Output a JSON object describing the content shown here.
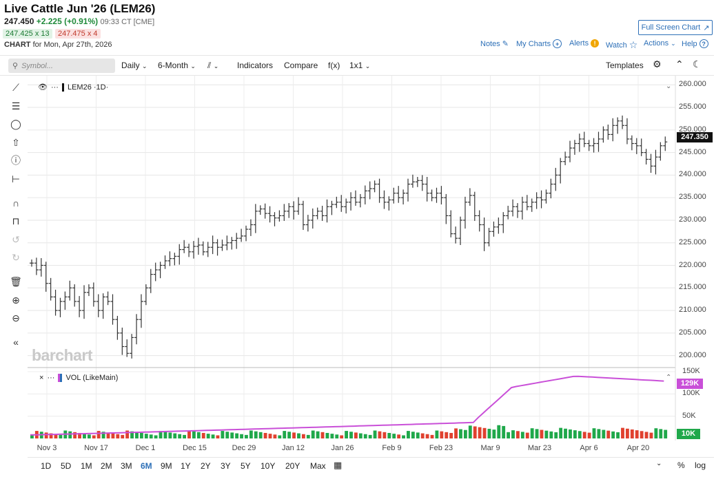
{
  "header": {
    "title": "Live Cattle Jun '26 (LEM26)",
    "last": "247.450",
    "change": "+2.225 (+0.91%)",
    "time": "09:33 CT [CME]",
    "bid": "247.425 x 13",
    "ask": "247.475 x 4",
    "chart_label": "CHART",
    "chart_for": "for Mon, Apr 27th, 2026",
    "full_screen": "Full Screen Chart"
  },
  "toplinks": {
    "notes": "Notes",
    "my_charts": "My Charts",
    "alerts": "Alerts",
    "alert_badge": "!",
    "watch": "Watch",
    "actions": "Actions",
    "help": "Help",
    "help_badge": "?"
  },
  "toolbar": {
    "search_placeholder": "Symbol...",
    "period": "Daily",
    "range": "6-Month",
    "indicators": "Indicators",
    "compare": "Compare",
    "fx": "f(x)",
    "layout": "1x1",
    "templates": "Templates"
  },
  "legend": {
    "main": "LEM26 ·1D·",
    "vol": "VOL (LikeMain)",
    "dots": "···",
    "close": "×",
    "caret": "⌄"
  },
  "watermark": "barchart",
  "price_tag": "247.350",
  "vol_tag": "129K",
  "vol10_tag": "10K",
  "range_buttons": [
    "1D",
    "5D",
    "1M",
    "2M",
    "3M",
    "6M",
    "9M",
    "1Y",
    "2Y",
    "3Y",
    "5Y",
    "10Y",
    "20Y",
    "Max"
  ],
  "active_range": "6M",
  "bottom_right": {
    "percent": "%",
    "log": "log"
  },
  "colors": {
    "up": "#1fa84a",
    "down": "#e0412f",
    "vol_line": "#c94fd8",
    "accent": "#2c6fb7"
  },
  "chart_data": {
    "type": "bar",
    "title": "",
    "y_ticks": [
      "260.000",
      "255.000",
      "250.000",
      "245.000",
      "240.000",
      "235.000",
      "230.000",
      "225.000",
      "220.000",
      "215.000",
      "210.000",
      "205.000",
      "200.000"
    ],
    "ylim": [
      197.5,
      260.5
    ],
    "x_labels": [
      "Nov 3",
      "Nov 17",
      "Dec 1",
      "Dec 15",
      "Dec 29",
      "Jan 12",
      "Jan 26",
      "Feb 9",
      "Feb 23",
      "Mar 9",
      "Mar 23",
      "Apr 6",
      "Apr 20"
    ],
    "ohlc_close": [
      220.5,
      219,
      220,
      216,
      213,
      210,
      212,
      213,
      215,
      212,
      210,
      214,
      215,
      212,
      210,
      213,
      212,
      208,
      205,
      202,
      200.5,
      204,
      208,
      212,
      215,
      218,
      219,
      220,
      221,
      221.5,
      222,
      223.5,
      224,
      223,
      224.2,
      224.5,
      223,
      224,
      225,
      224,
      224.5,
      225,
      225.5,
      226,
      226.5,
      228,
      229,
      232,
      232.5,
      231.5,
      231,
      230.5,
      231,
      232,
      233,
      232,
      233.5,
      229,
      230,
      231,
      232,
      231,
      233,
      233.5,
      234,
      233,
      234,
      235,
      234,
      235,
      236.5,
      237,
      238,
      235,
      234,
      234.5,
      236,
      235,
      236,
      238,
      238.5,
      238.8,
      238,
      236,
      235,
      236,
      235,
      231,
      227,
      226,
      230,
      234,
      235.5,
      231,
      229,
      225,
      227.5,
      228.5,
      229,
      231,
      232,
      233,
      232,
      234,
      233,
      234,
      235,
      234.5,
      236,
      238,
      240,
      243,
      244,
      246,
      247,
      248,
      247,
      246.5,
      247,
      248,
      250,
      249,
      251,
      252,
      251,
      248,
      247,
      246.5,
      245,
      243.5,
      242,
      244,
      246.5,
      247.35
    ],
    "volume_series": {
      "name": "VOL (LikeMain)",
      "y_ticks": [
        "150K",
        "100K",
        "50K"
      ],
      "ylim": [
        0,
        150000
      ],
      "line_start": 8000,
      "line_peak": 140000,
      "line_end": 129000
    }
  }
}
